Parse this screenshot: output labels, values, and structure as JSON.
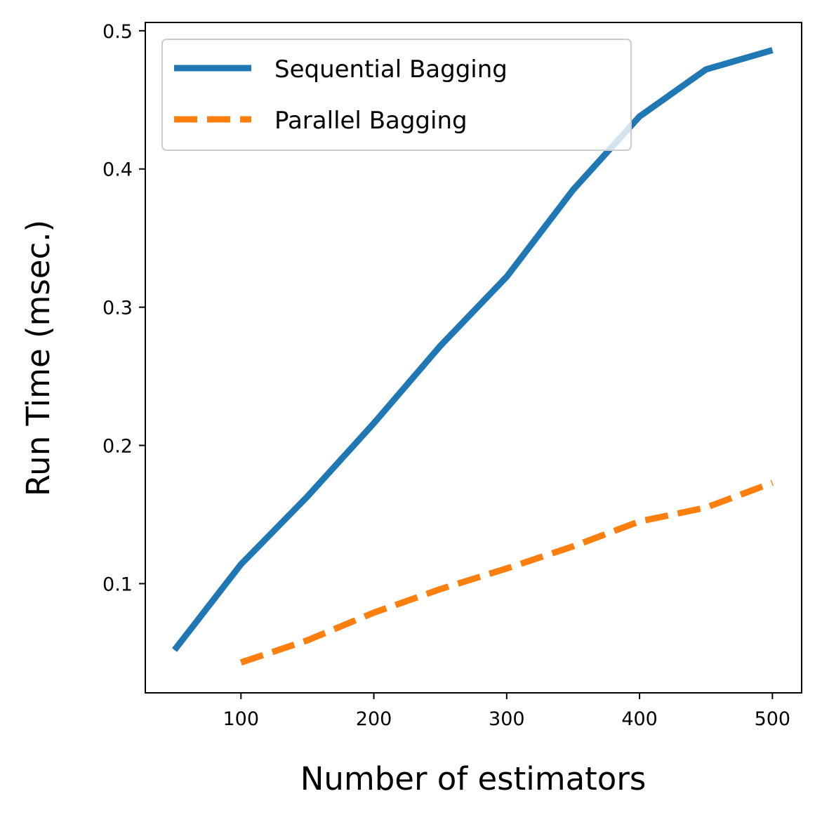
{
  "chart_data": {
    "type": "line",
    "title": "",
    "xlabel": "Number of estimators",
    "ylabel": "Run Time (msec.)",
    "xlim": [
      28,
      522
    ],
    "ylim": [
      0.021,
      0.506
    ],
    "xticks": [
      100,
      200,
      300,
      400,
      500
    ],
    "yticks": [
      0.1,
      0.2,
      0.3,
      0.4,
      0.5
    ],
    "xtick_labels": [
      "100",
      "200",
      "300",
      "400",
      "500"
    ],
    "ytick_labels": [
      "0.1",
      "0.2",
      "0.3",
      "0.4",
      "0.5"
    ],
    "grid": false,
    "legend_position": "top-left",
    "series": [
      {
        "name": "Sequential Bagging",
        "color": "#1f77b4",
        "style": "solid",
        "x": [
          50,
          100,
          150,
          200,
          250,
          300,
          350,
          400,
          450,
          500
        ],
        "y": [
          0.052,
          0.114,
          0.163,
          0.216,
          0.272,
          0.322,
          0.385,
          0.438,
          0.472,
          0.486
        ]
      },
      {
        "name": "Parallel Bagging",
        "color": "#ff7f0e",
        "style": "dashed",
        "x": [
          100,
          150,
          200,
          250,
          300,
          350,
          400,
          450,
          500
        ],
        "y": [
          0.043,
          0.059,
          0.079,
          0.096,
          0.111,
          0.127,
          0.145,
          0.155,
          0.173
        ]
      }
    ]
  }
}
